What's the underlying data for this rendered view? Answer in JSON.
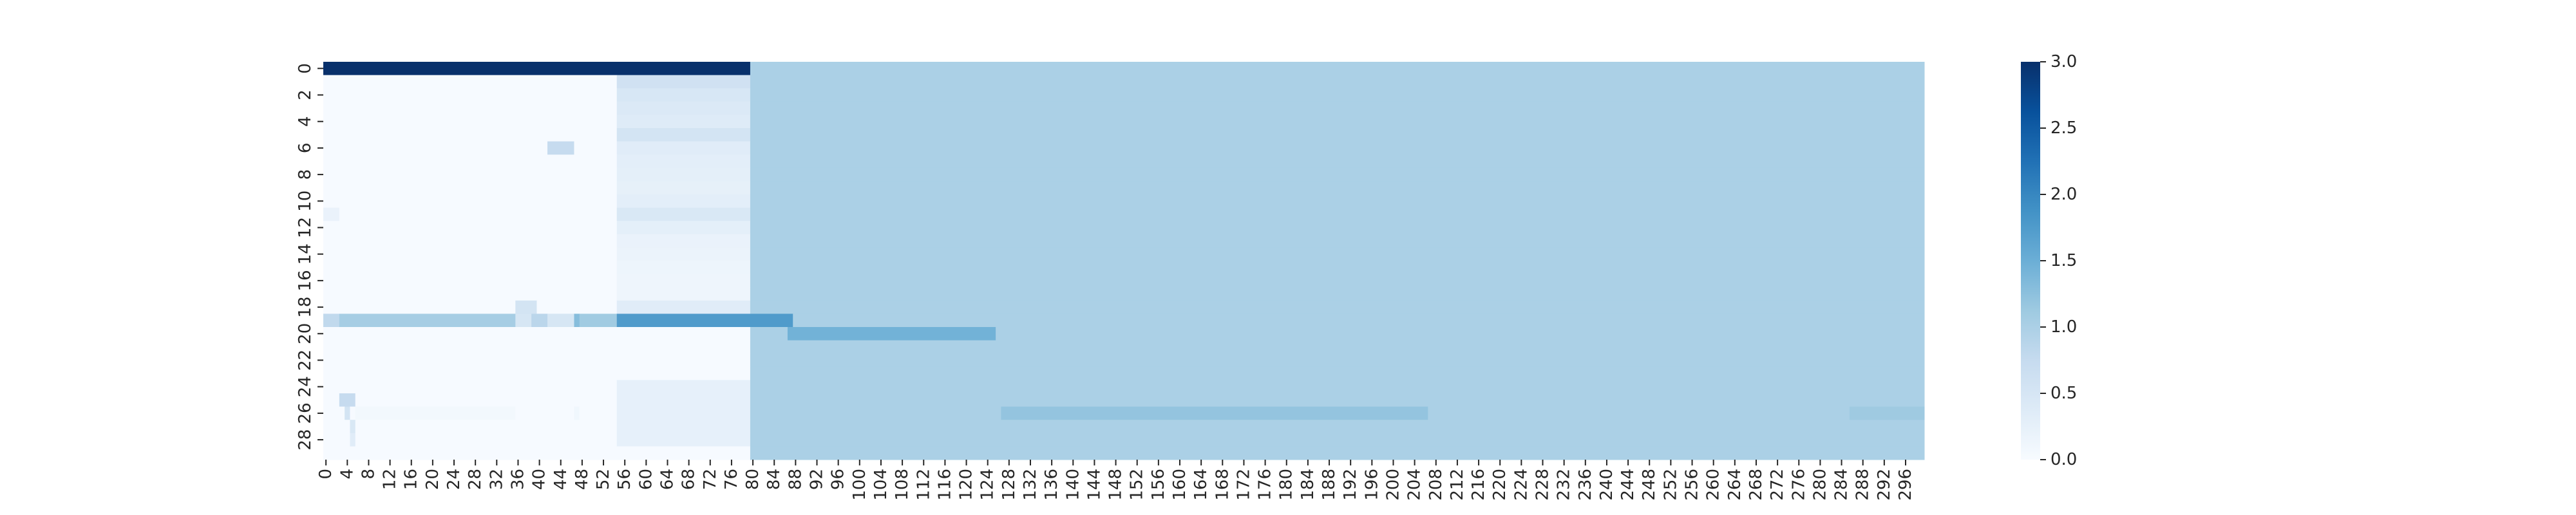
{
  "chart_data": {
    "type": "heatmap",
    "title": "",
    "xlabel": "",
    "ylabel": "",
    "colormap": "Blues",
    "vmin": 0.0,
    "vmax": 3.0,
    "n_cols": 300,
    "n_rows": 30,
    "x_tick_labels": [
      "0",
      "4",
      "8",
      "12",
      "16",
      "20",
      "24",
      "28",
      "32",
      "36",
      "40",
      "44",
      "48",
      "52",
      "56",
      "60",
      "64",
      "68",
      "72",
      "76",
      "80",
      "84",
      "88",
      "92",
      "96",
      "100",
      "104",
      "108",
      "112",
      "116",
      "120",
      "124",
      "128",
      "132",
      "136",
      "140",
      "144",
      "148",
      "152",
      "156",
      "160",
      "164",
      "168",
      "172",
      "176",
      "180",
      "184",
      "188",
      "192",
      "196",
      "200",
      "204",
      "208",
      "212",
      "216",
      "220",
      "224",
      "228",
      "232",
      "236",
      "240",
      "244",
      "248",
      "252",
      "256",
      "260",
      "264",
      "268",
      "272",
      "276",
      "280",
      "284",
      "288",
      "292",
      "296"
    ],
    "y_tick_labels": [
      "0",
      "2",
      "4",
      "6",
      "8",
      "10",
      "12",
      "14",
      "16",
      "18",
      "20",
      "22",
      "24",
      "26",
      "28"
    ],
    "colorbar_ticks": [
      "0.0",
      "0.5",
      "1.0",
      "1.5",
      "2.0",
      "2.5",
      "3.0"
    ],
    "description_of_values": {
      "background_value": 0.02,
      "right_region_value": 1.0,
      "right_region_start_col": 80
    },
    "row_segments": [
      {
        "row": 0,
        "col_start": 0,
        "col_end": 79,
        "value": 3.0
      },
      {
        "row": 0,
        "col_start": 80,
        "col_end": 299,
        "value": 1.0
      },
      {
        "row": 6,
        "col_start": 42,
        "col_end": 46,
        "value": 0.75
      },
      {
        "row": 11,
        "col_start": 0,
        "col_end": 2,
        "value": 0.2
      },
      {
        "row": 18,
        "col_start": 36,
        "col_end": 39,
        "value": 0.55
      },
      {
        "row": 19,
        "col_start": 0,
        "col_end": 2,
        "value": 0.8
      },
      {
        "row": 19,
        "col_start": 3,
        "col_end": 35,
        "value": 1.05
      },
      {
        "row": 19,
        "col_start": 36,
        "col_end": 38,
        "value": 0.5
      },
      {
        "row": 19,
        "col_start": 39,
        "col_end": 41,
        "value": 0.85
      },
      {
        "row": 19,
        "col_start": 42,
        "col_end": 46,
        "value": 0.5
      },
      {
        "row": 19,
        "col_start": 47,
        "col_end": 47,
        "value": 1.3
      },
      {
        "row": 19,
        "col_start": 48,
        "col_end": 54,
        "value": 1.1
      },
      {
        "row": 19,
        "col_start": 55,
        "col_end": 87,
        "value": 1.75
      },
      {
        "row": 20,
        "col_start": 87,
        "col_end": 125,
        "value": 1.45
      },
      {
        "row": 25,
        "col_start": 3,
        "col_end": 5,
        "value": 0.75
      },
      {
        "row": 26,
        "col_start": 4,
        "col_end": 4,
        "value": 0.55
      },
      {
        "row": 26,
        "col_start": 127,
        "col_end": 206,
        "value": 1.2
      },
      {
        "row": 26,
        "col_start": 286,
        "col_end": 299,
        "value": 1.12
      },
      {
        "row": 27,
        "col_start": 5,
        "col_end": 5,
        "value": 0.45
      },
      {
        "row": 28,
        "col_start": 5,
        "col_end": 5,
        "value": 0.35
      }
    ],
    "gradient_block": {
      "col_start": 55,
      "col_end": 79,
      "row_values": [
        3.0,
        0.6,
        0.48,
        0.42,
        0.38,
        0.55,
        0.35,
        0.3,
        0.28,
        0.26,
        0.3,
        0.45,
        0.28,
        0.2,
        0.18,
        0.15,
        0.14,
        0.13,
        0.35,
        1.75,
        0.02,
        0.02,
        0.02,
        0.02,
        0.25,
        0.25,
        0.25,
        0.25,
        0.25,
        0.02
      ]
    },
    "faint_row_segments": [
      {
        "row": 26,
        "col_start": 6,
        "col_end": 35,
        "value": 0.08
      },
      {
        "row": 26,
        "col_start": 47,
        "col_end": 47,
        "value": 0.1
      }
    ]
  }
}
